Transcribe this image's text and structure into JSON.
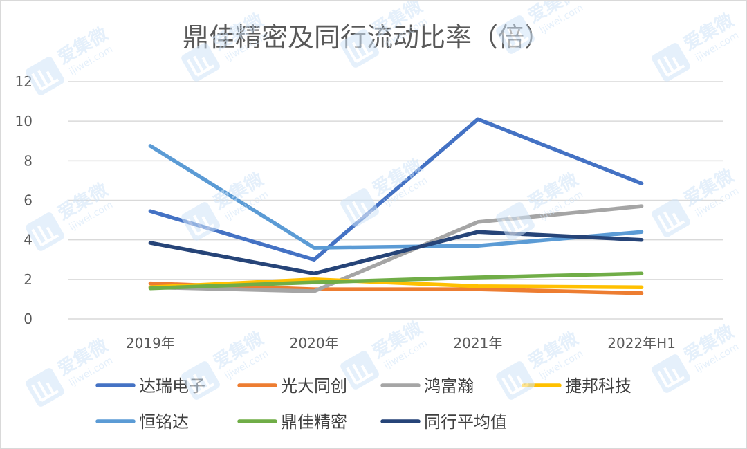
{
  "chart_data": {
    "type": "line",
    "title": "鼎佳精密及同行流动比率（倍）",
    "x": [
      "2019年",
      "2020年",
      "2021年",
      "2022年H1"
    ],
    "ylim": [
      0,
      12
    ],
    "yticks": [
      0,
      2,
      4,
      6,
      8,
      10,
      12
    ],
    "grid": true,
    "legend_position": "bottom",
    "series": [
      {
        "name": "达瑞电子",
        "color": "#4472c4",
        "values": [
          5.45,
          3.0,
          10.1,
          6.85
        ]
      },
      {
        "name": "光大同创",
        "color": "#ed7d31",
        "values": [
          1.8,
          1.5,
          1.5,
          1.3
        ]
      },
      {
        "name": "鸿富瀚",
        "color": "#a5a5a5",
        "values": [
          1.6,
          1.4,
          4.9,
          5.7
        ]
      },
      {
        "name": "捷邦科技",
        "color": "#ffc000",
        "values": [
          1.6,
          2.0,
          1.65,
          1.6
        ]
      },
      {
        "name": "恒铭达",
        "color": "#5b9bd5",
        "values": [
          8.75,
          3.6,
          3.7,
          4.4
        ]
      },
      {
        "name": "鼎佳精密",
        "color": "#70ad47",
        "values": [
          1.55,
          1.85,
          2.1,
          2.3
        ]
      },
      {
        "name": "同行平均值",
        "color": "#264478",
        "values": [
          3.85,
          2.3,
          4.4,
          4.0
        ]
      }
    ]
  },
  "watermark": {
    "text": "爱集微",
    "url": "ijiwei.com"
  }
}
